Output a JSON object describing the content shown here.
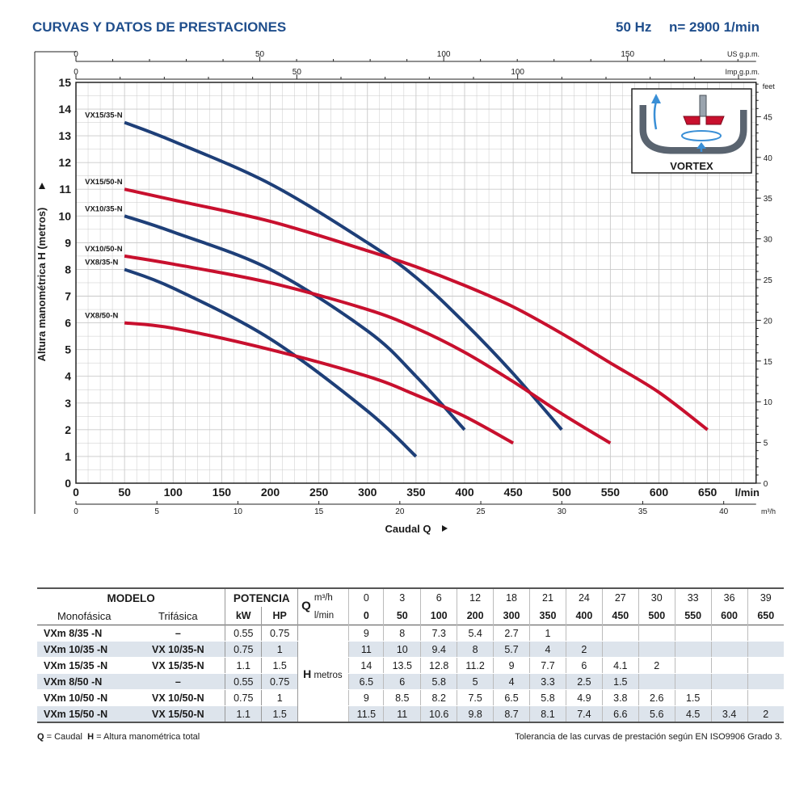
{
  "header": {
    "title": "CURVAS Y DATOS DE PRESTACIONES",
    "frequency": "50 Hz",
    "speed": "n= 2900  1/min"
  },
  "colors": {
    "heading_blue": "#1f4e8c",
    "curve_blue": "#1e3f78",
    "curve_red": "#c8102e",
    "grid": "#c9c9c9",
    "table_shade": "#dde4ec"
  },
  "inset": {
    "label": "VORTEX",
    "icon": "vortex-impeller-icon"
  },
  "chart_data": {
    "type": "line",
    "title": "",
    "xlabel": "Caudal  Q",
    "ylabel": "Altura manométrica  H  (metros)",
    "xlim": [
      0,
      700
    ],
    "ylim": [
      0,
      15
    ],
    "x_unit": "l/min",
    "grid": true,
    "x_ticks": [
      0,
      50,
      100,
      150,
      200,
      250,
      300,
      350,
      400,
      450,
      500,
      550,
      600,
      650
    ],
    "y_ticks": [
      0,
      1,
      2,
      3,
      4,
      5,
      6,
      7,
      8,
      9,
      10,
      11,
      12,
      13,
      14,
      15
    ],
    "secondary_axes": {
      "m3h": {
        "unit": "m³/h",
        "ticks": [
          0,
          5,
          10,
          15,
          20,
          25,
          30,
          35,
          40
        ],
        "lmin_per_unit": 16.6667
      },
      "us_gpm": {
        "unit": "US g.p.m.",
        "ticks": [
          0,
          50,
          100,
          150
        ],
        "lmin_per_unit": 3.785
      },
      "imp_gpm": {
        "unit": "Imp g.p.m.",
        "ticks": [
          0,
          50,
          100
        ],
        "lmin_per_unit": 4.546
      },
      "feet": {
        "unit": "feet",
        "ticks": [
          0,
          5,
          10,
          15,
          20,
          25,
          30,
          35,
          40,
          45
        ],
        "m_per_unit": 0.3048
      }
    },
    "series": [
      {
        "name": "VX15/35-N",
        "color": "blue",
        "x": [
          50,
          100,
          200,
          300,
          350,
          400,
          450,
          500
        ],
        "y": [
          13.5,
          12.8,
          11.2,
          9,
          7.7,
          6,
          4.1,
          2
        ]
      },
      {
        "name": "VX15/50-N",
        "color": "red",
        "x": [
          50,
          100,
          200,
          300,
          350,
          400,
          450,
          500,
          550,
          600,
          650
        ],
        "y": [
          11,
          10.6,
          9.8,
          8.7,
          8.1,
          7.4,
          6.6,
          5.6,
          4.5,
          3.4,
          2
        ]
      },
      {
        "name": "VX10/35-N",
        "color": "blue",
        "x": [
          50,
          100,
          200,
          300,
          350,
          400
        ],
        "y": [
          10,
          9.4,
          8,
          5.7,
          4,
          2
        ]
      },
      {
        "name": "VX10/50-N",
        "color": "red",
        "x": [
          50,
          100,
          200,
          300,
          350,
          400,
          450,
          500,
          550
        ],
        "y": [
          8.5,
          8.2,
          7.5,
          6.5,
          5.8,
          4.9,
          3.8,
          2.6,
          1.5
        ]
      },
      {
        "name": "VX8/35-N",
        "color": "blue",
        "x": [
          50,
          100,
          200,
          300,
          350
        ],
        "y": [
          8,
          7.3,
          5.4,
          2.7,
          1
        ]
      },
      {
        "name": "VX8/50-N",
        "color": "red",
        "x": [
          50,
          100,
          200,
          300,
          350,
          400,
          450
        ],
        "y": [
          6,
          5.8,
          5,
          4,
          3.3,
          2.5,
          1.5
        ]
      }
    ]
  },
  "table": {
    "modelo_label": "MODELO",
    "potencia_label": "POTENCIA",
    "q_label": "Q",
    "m3h_label": "m³/h",
    "lmin_label": "l/min",
    "monofasica_label": "Monofásica",
    "trifasica_label": "Trifásica",
    "kw_label": "kW",
    "hp_label": "HP",
    "h_label": "H",
    "metros_label": "metros",
    "q_m3h": [
      "0",
      "3",
      "6",
      "12",
      "18",
      "21",
      "24",
      "27",
      "30",
      "33",
      "36",
      "39"
    ],
    "q_lmin": [
      "0",
      "50",
      "100",
      "200",
      "300",
      "350",
      "400",
      "450",
      "500",
      "550",
      "600",
      "650"
    ],
    "rows": [
      {
        "mono": "VXm 8/35  -N",
        "tri": "–",
        "kw": "0.55",
        "hp": "0.75",
        "h": [
          "9",
          "8",
          "7.3",
          "5.4",
          "2.7",
          "1",
          "",
          "",
          "",
          "",
          "",
          ""
        ]
      },
      {
        "mono": "VXm 10/35 -N",
        "tri": "VX 10/35-N",
        "kw": "0.75",
        "hp": "1",
        "h": [
          "11",
          "10",
          "9.4",
          "8",
          "5.7",
          "4",
          "2",
          "",
          "",
          "",
          "",
          ""
        ]
      },
      {
        "mono": "VXm 15/35 -N",
        "tri": "VX 15/35-N",
        "kw": "1.1",
        "hp": "1.5",
        "h": [
          "14",
          "13.5",
          "12.8",
          "11.2",
          "9",
          "7.7",
          "6",
          "4.1",
          "2",
          "",
          "",
          ""
        ]
      },
      {
        "mono": "VXm 8/50  -N",
        "tri": "–",
        "kw": "0.55",
        "hp": "0.75",
        "h": [
          "6.5",
          "6",
          "5.8",
          "5",
          "4",
          "3.3",
          "2.5",
          "1.5",
          "",
          "",
          "",
          ""
        ]
      },
      {
        "mono": "VXm 10/50 -N",
        "tri": "VX 10/50-N",
        "kw": "0.75",
        "hp": "1",
        "h": [
          "9",
          "8.5",
          "8.2",
          "7.5",
          "6.5",
          "5.8",
          "4.9",
          "3.8",
          "2.6",
          "1.5",
          "",
          ""
        ]
      },
      {
        "mono": "VXm 15/50 -N",
        "tri": "VX 15/50-N",
        "kw": "1.1",
        "hp": "1.5",
        "h": [
          "11.5",
          "11",
          "10.6",
          "9.8",
          "8.7",
          "8.1",
          "7.4",
          "6.6",
          "5.6",
          "4.5",
          "3.4",
          "2"
        ]
      }
    ]
  },
  "footer": {
    "q_abbr": "Q",
    "q_def": " = Caudal",
    "h_abbr": "H",
    "h_def": " = Altura manométrica total",
    "tolerance": "Tolerancia de las curvas de prestación según EN ISO9906 Grado 3."
  }
}
